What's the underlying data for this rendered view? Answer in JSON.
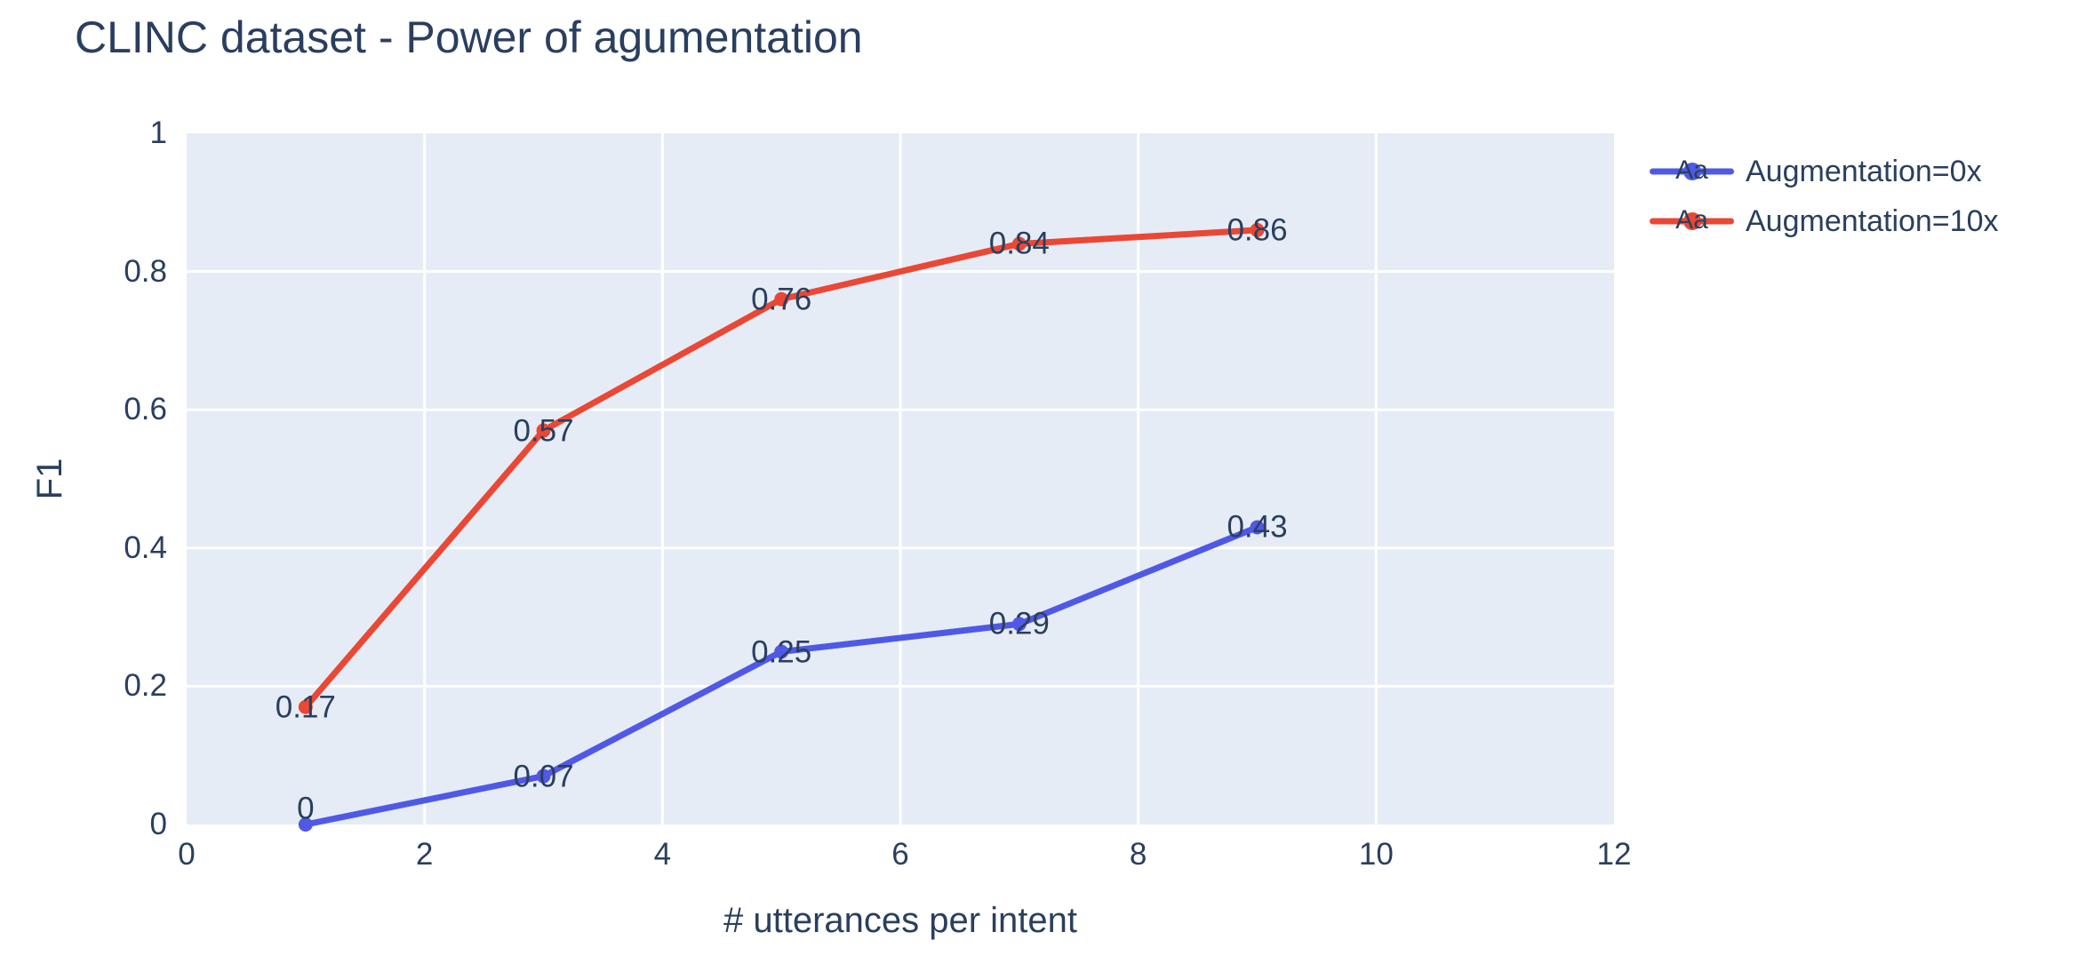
{
  "chart_data": {
    "type": "line",
    "title": "CLINC dataset - Power of agumentation",
    "xlabel": "# utterances per intent",
    "ylabel": "F1",
    "xlim": [
      0,
      12
    ],
    "ylim": [
      0,
      1
    ],
    "xticks": [
      0,
      2,
      4,
      6,
      8,
      10,
      12
    ],
    "xtick_labels": [
      "0",
      "2",
      "4",
      "6",
      "8",
      "10",
      "12"
    ],
    "yticks": [
      0,
      0.2,
      0.4,
      0.6,
      0.8,
      1
    ],
    "ytick_labels": [
      "0",
      "0.2",
      "0.4",
      "0.6",
      "0.8",
      "1"
    ],
    "grid": true,
    "legend_position": "outside-top-right",
    "x": [
      1,
      3,
      5,
      7,
      9
    ],
    "series": [
      {
        "name": "Augmentation=0x",
        "color": "#5059E5",
        "values": [
          0,
          0.07,
          0.25,
          0.29,
          0.43
        ],
        "point_labels": [
          "0",
          "0.07",
          "0.25",
          "0.29",
          "0.43"
        ]
      },
      {
        "name": "Augmentation=10x",
        "color": "#EB4735",
        "values": [
          0.17,
          0.57,
          0.76,
          0.84,
          0.86
        ],
        "point_labels": [
          "0.17",
          "0.57",
          "0.76",
          "0.84",
          "0.86"
        ]
      }
    ]
  },
  "legend": {
    "marker_text": "Aa"
  },
  "colors": {
    "text": "#2A3F5F",
    "grid": "#FFFFFF",
    "plot_background": "#E5ECF6",
    "page_background": "#FFFFFF"
  }
}
